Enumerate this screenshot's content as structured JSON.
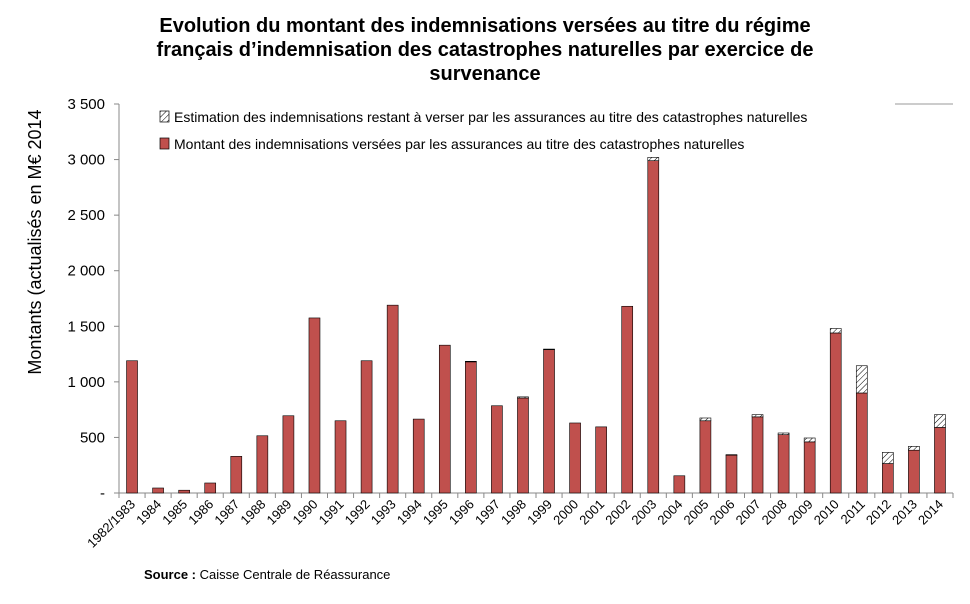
{
  "chart_data": {
    "type": "bar",
    "stacked": true,
    "title_lines": [
      "Evolution du montant des indemnisations versées au titre du régime",
      "français d’indemnisation des catastrophes naturelles par exercice de",
      "survenance"
    ],
    "ylabel": "Montants (actualisés en M€ 2014",
    "ylim": [
      0,
      3500
    ],
    "yticks": [
      {
        "value": 0,
        "label": "-"
      },
      {
        "value": 500,
        "label": "500"
      },
      {
        "value": 1000,
        "label": "1 000"
      },
      {
        "value": 1500,
        "label": "1 500"
      },
      {
        "value": 2000,
        "label": "2 000"
      },
      {
        "value": 2500,
        "label": "2 500"
      },
      {
        "value": 3000,
        "label": "3 000"
      },
      {
        "value": 3500,
        "label": "3 500"
      }
    ],
    "grid": false,
    "legend_position": "top",
    "categories": [
      "1982/1983",
      "1984",
      "1985",
      "1986",
      "1987",
      "1988",
      "1989",
      "1990",
      "1991",
      "1992",
      "1993",
      "1994",
      "1995",
      "1996",
      "1997",
      "1998",
      "1999",
      "2000",
      "2001",
      "2002",
      "2003",
      "2004",
      "2005",
      "2006",
      "2007",
      "2008",
      "2009",
      "2010",
      "2011",
      "2012",
      "2013",
      "2014"
    ],
    "series": [
      {
        "name": "Montant des indemnisations versées par les assurances au titre des catastrophes naturelles",
        "color": "#c0504d",
        "pattern": "solid",
        "values": [
          1190,
          45,
          25,
          90,
          330,
          515,
          695,
          1575,
          650,
          1190,
          1690,
          665,
          1330,
          1180,
          785,
          855,
          1290,
          630,
          595,
          1680,
          2990,
          155,
          650,
          340,
          685,
          525,
          460,
          1440,
          900,
          265,
          385,
          590
        ]
      },
      {
        "name": "Estimation des indemnisations restant à verser par les assurances au titre des catastrophes naturelles",
        "color": "#ffffff",
        "pattern": "hatched",
        "values": [
          0,
          0,
          0,
          0,
          0,
          0,
          0,
          0,
          0,
          0,
          0,
          0,
          0,
          5,
          0,
          10,
          5,
          0,
          0,
          0,
          30,
          0,
          25,
          5,
          20,
          15,
          35,
          40,
          245,
          100,
          35,
          115
        ]
      }
    ]
  },
  "source": {
    "label": "Source :",
    "text": "Caisse Centrale de Réassurance"
  }
}
